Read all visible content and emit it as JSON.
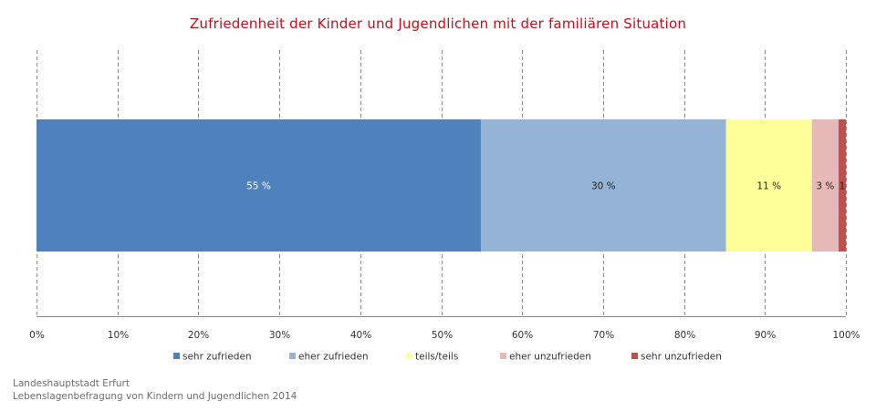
{
  "chart_data": {
    "type": "bar",
    "orientation": "horizontal",
    "stacked": true,
    "title": "Zufriedenheit der Kinder und Jugendlichen mit der familiären Situation",
    "xlim": [
      0,
      100
    ],
    "x_ticks": [
      0,
      10,
      20,
      30,
      40,
      50,
      60,
      70,
      80,
      90,
      100
    ],
    "x_tick_labels": [
      "0%",
      "10%",
      "20%",
      "30%",
      "40%",
      "50%",
      "60%",
      "70%",
      "80%",
      "90%",
      "100%"
    ],
    "grid": "vertical dashed",
    "legend_position": "bottom",
    "series": [
      {
        "name": "sehr zufrieden",
        "value": 54.9,
        "label": "55 %",
        "color": "#4f81bd",
        "label_color": "#ffffff"
      },
      {
        "name": "eher zufrieden",
        "value": 30.3,
        "label": "30 %",
        "color": "#95b3d7",
        "label_color": "#1f1f1f"
      },
      {
        "name": "teils/teils",
        "value": 10.6,
        "label": "11 %",
        "color": "#ffff99",
        "label_color": "#1f1f1f"
      },
      {
        "name": "eher unzufrieden",
        "value": 3.3,
        "label": "3 %",
        "color": "#e6b9b8",
        "label_color": "#1f1f1f"
      },
      {
        "name": "sehr unzufrieden",
        "value": 0.9,
        "label": "1",
        "color": "#c0504d",
        "label_color": "#1f1f1f"
      }
    ]
  },
  "source": {
    "line1": "Landeshauptstadt Erfurt",
    "line2": "Lebenslagenbefragung von Kindern und Jugendlichen 2014"
  }
}
